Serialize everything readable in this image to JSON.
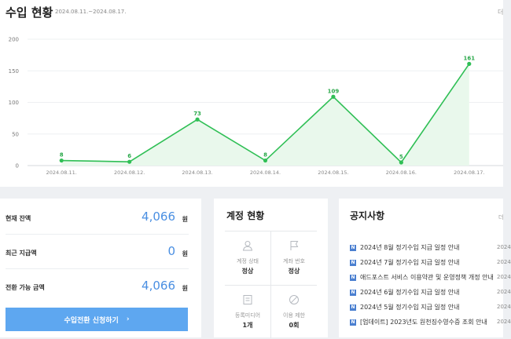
{
  "header": {
    "title": "수입 현황",
    "period": "2024.08.11.~2024.08.17.",
    "more_label": "더"
  },
  "chart_data": {
    "type": "area",
    "categories": [
      "2024.08.11.",
      "2024.08.12.",
      "2024.08.13.",
      "2024.08.14.",
      "2024.08.15.",
      "2024.08.16.",
      "2024.08.17."
    ],
    "values": [
      8,
      6,
      73,
      8,
      109,
      5,
      161
    ],
    "data_labels": [
      "8",
      "6",
      "73",
      "8",
      "109",
      "5",
      "161"
    ],
    "ylim": [
      0,
      200
    ],
    "yticks": [
      0,
      50,
      100,
      150,
      200
    ],
    "ytick_labels": [
      "0",
      "50",
      "100",
      "150",
      "200"
    ],
    "title": "",
    "xlabel": "",
    "ylabel": "",
    "grid": true,
    "line_color": "#2fbf55",
    "fill_color": "#e9f8ec"
  },
  "balance": {
    "rows": [
      {
        "label": "현재 잔액",
        "value": "4,066",
        "unit": "원"
      },
      {
        "label": "최근 지급액",
        "value": "0",
        "unit": "원"
      },
      {
        "label": "전환 가능 금액",
        "value": "4,066",
        "unit": "원"
      }
    ],
    "button_label": "수입전환 신청하기",
    "button_arrow": "›",
    "accent_color": "#5ea7f0"
  },
  "account": {
    "title": "계정 현황",
    "cells": [
      {
        "icon": "user-icon",
        "label": "계정 상태",
        "value": "정상"
      },
      {
        "icon": "flag-icon",
        "label": "계좌 번호",
        "value": "정상"
      },
      {
        "icon": "document-icon",
        "label": "등록미디어",
        "value": "1개"
      },
      {
        "icon": "prohibited-icon",
        "label": "이용 제한",
        "value": "0회"
      }
    ]
  },
  "notice": {
    "title": "공지사항",
    "more_label": "더",
    "items": [
      {
        "badge": "N",
        "text": "2024년 8월 정기수입 지급 일정 안내",
        "date": "2024"
      },
      {
        "badge": "N",
        "text": "2024년 7월 정기수입 지급 일정 안내",
        "date": "2024"
      },
      {
        "badge": "N",
        "text": "애드포스트 서비스 이용약관 및 운영정책 개정 안내",
        "date": "2024"
      },
      {
        "badge": "N",
        "text": "2024년 6월 정기수입 지급 일정 안내",
        "date": "2024"
      },
      {
        "badge": "N",
        "text": "2024년 5월 정기수입 지급 일정 안내",
        "date": "2024"
      },
      {
        "badge": "N",
        "text": "[업데이트] 2023년도 원천징수영수증 조회 안내",
        "date": "2024"
      }
    ]
  }
}
